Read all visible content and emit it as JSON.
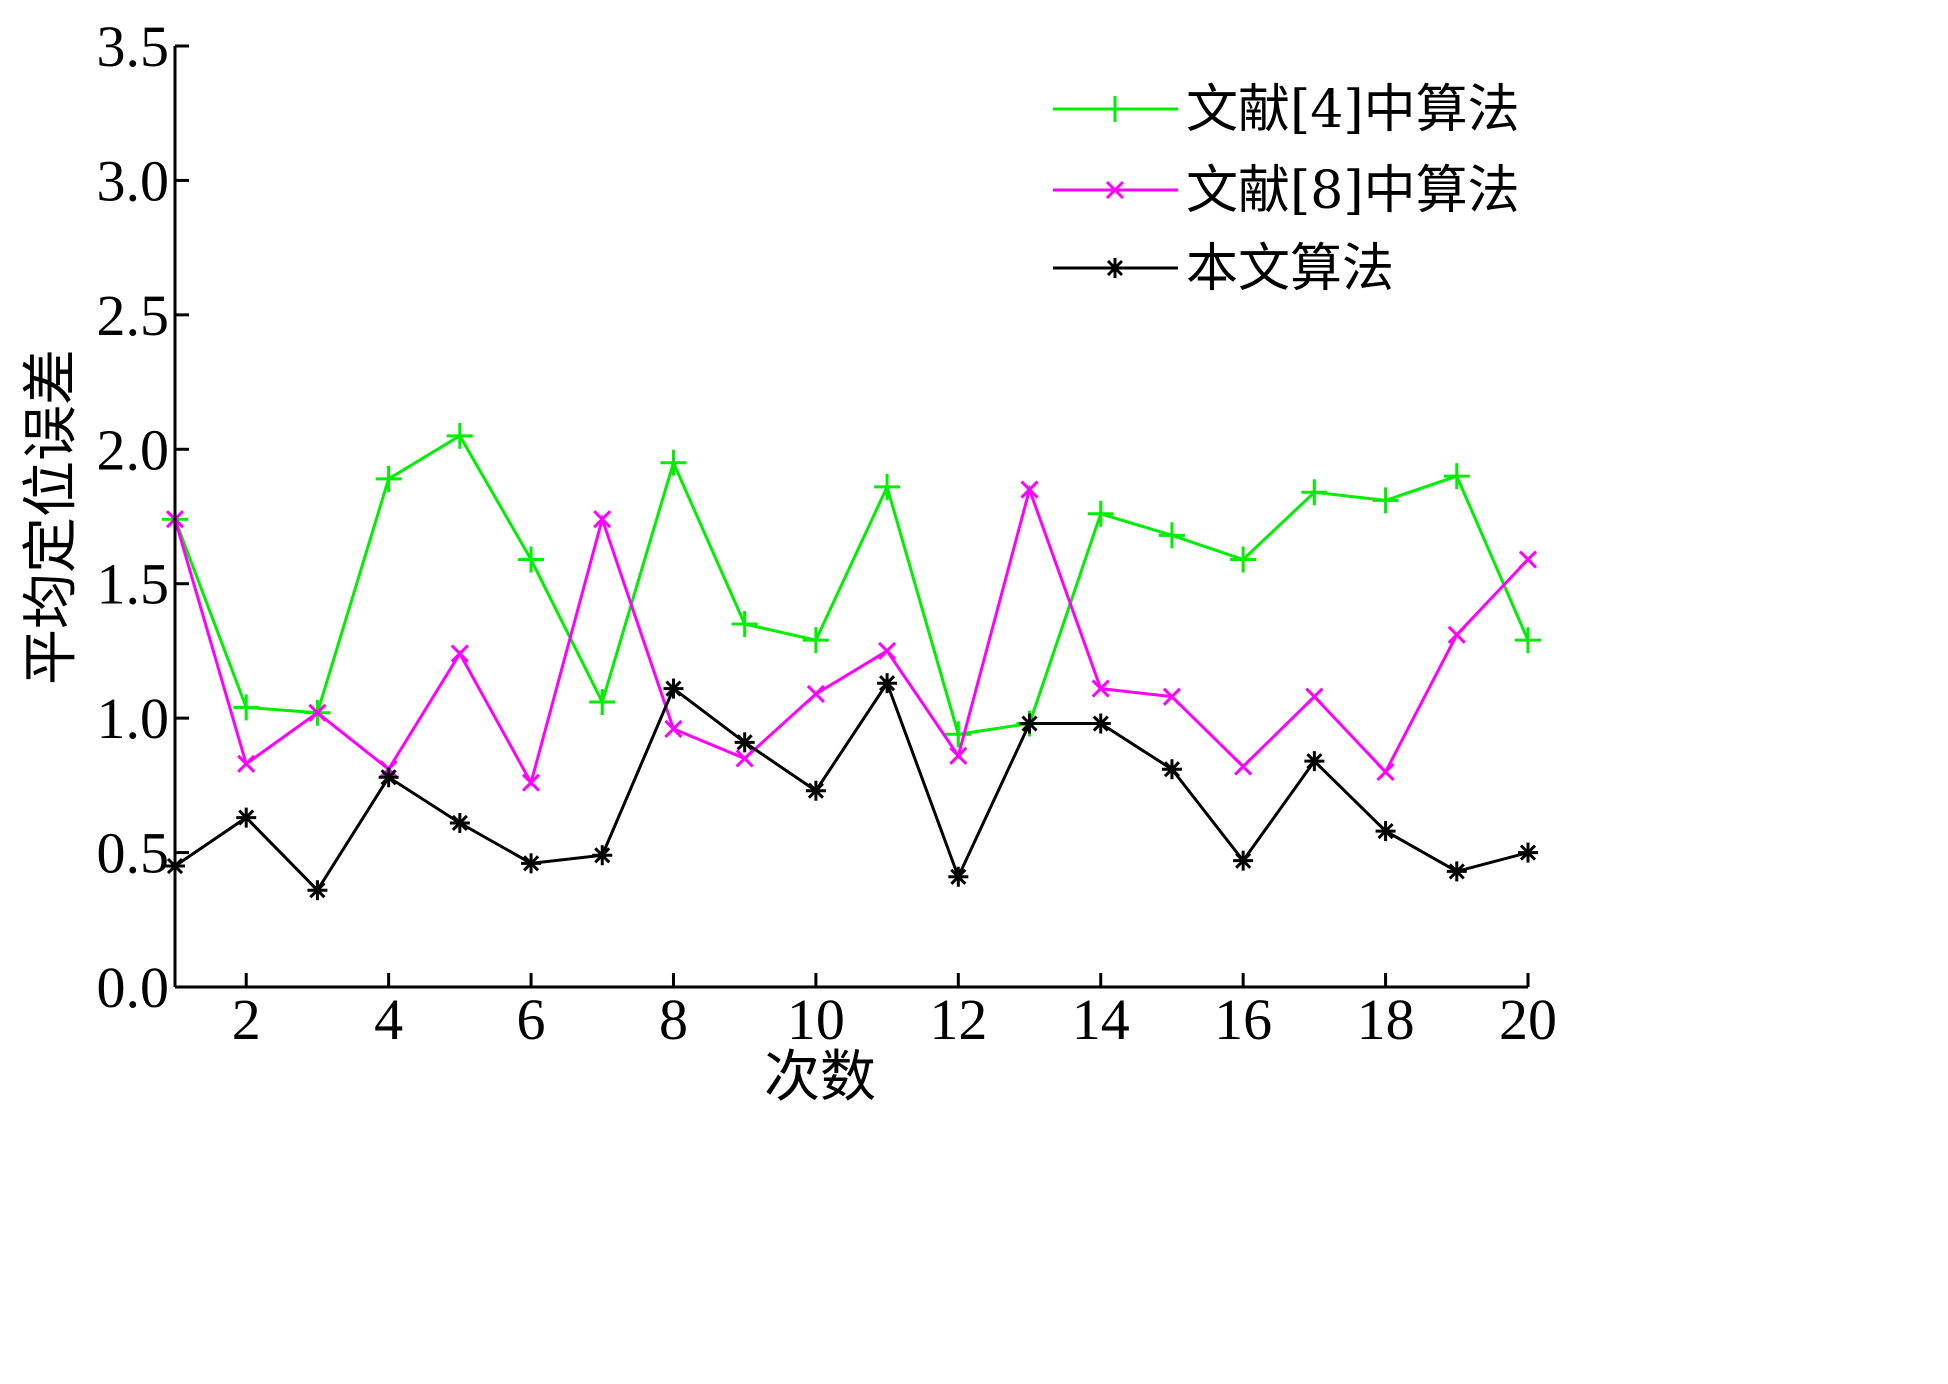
{
  "chart_data": {
    "type": "line",
    "xlabel": "次数",
    "ylabel": "平均定位误差",
    "xlim": [
      1,
      20
    ],
    "ylim": [
      0,
      3.5
    ],
    "xticks": [
      2,
      4,
      6,
      8,
      10,
      12,
      14,
      16,
      18,
      20
    ],
    "yticks": [
      "0.0",
      "0.5",
      "1.0",
      "1.5",
      "2.0",
      "2.5",
      "3.0",
      "3.5"
    ],
    "x": [
      1,
      2,
      3,
      4,
      5,
      6,
      7,
      8,
      9,
      10,
      11,
      12,
      13,
      14,
      15,
      16,
      17,
      18,
      19,
      20
    ],
    "legend_position": "top-right",
    "series": [
      {
        "name": "文献[4]中算法",
        "color": "#00ee00",
        "marker": "plus",
        "values": [
          1.74,
          1.04,
          1.02,
          1.89,
          2.05,
          1.59,
          1.06,
          1.95,
          1.35,
          1.29,
          1.86,
          0.94,
          0.98,
          1.76,
          1.68,
          1.59,
          1.84,
          1.81,
          1.9,
          1.29
        ]
      },
      {
        "name": "文献[8]中算法",
        "color": "#ff00ff",
        "marker": "x",
        "values": [
          1.74,
          0.83,
          1.02,
          0.81,
          1.24,
          0.76,
          1.74,
          0.96,
          0.85,
          1.09,
          1.25,
          0.86,
          1.85,
          1.11,
          1.08,
          0.82,
          1.08,
          0.8,
          1.31,
          1.59
        ]
      },
      {
        "name": "本文算法",
        "color": "#000000",
        "marker": "star",
        "values": [
          0.45,
          0.63,
          0.36,
          0.78,
          0.61,
          0.46,
          0.49,
          1.11,
          0.91,
          0.73,
          1.13,
          0.41,
          0.98,
          0.98,
          0.81,
          0.47,
          0.84,
          0.58,
          0.43,
          0.5
        ]
      }
    ]
  }
}
